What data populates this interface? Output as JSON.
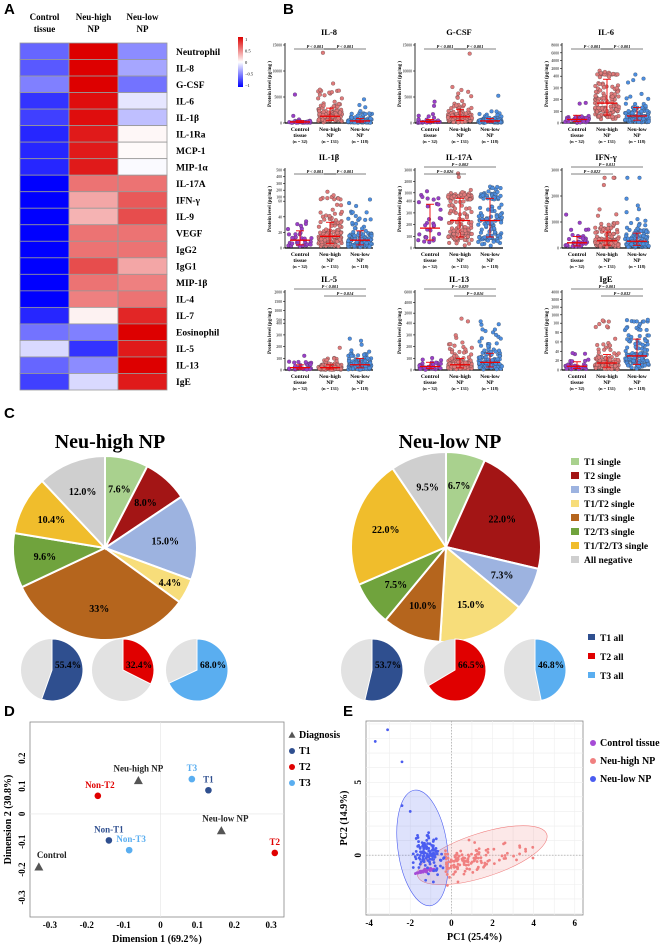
{
  "panel_letters": [
    "A",
    "B",
    "C",
    "D",
    "E"
  ],
  "chart_data": [
    {
      "panel": "A",
      "type": "heatmap",
      "columns": [
        "Control tissue",
        "Neu-high NP",
        "Neu-low NP"
      ],
      "column_lines": [
        [
          "Control",
          "tissue"
        ],
        [
          "Neu-high",
          "NP"
        ],
        [
          "Neu-low",
          "NP"
        ]
      ],
      "rows": [
        "Neutrophil",
        "IL-8",
        "G-CSF",
        "IL-6",
        "IL-1β",
        "IL-1Ra",
        "MCP-1",
        "MIP-1α",
        "IL-17A",
        "IFN-γ",
        "IL-9",
        "VEGF",
        "IgG2",
        "IgG1",
        "MIP-1β",
        "IL-4",
        "IL-7",
        "Eosinophil",
        "IL-5",
        "IL-13",
        "IgE"
      ],
      "values": [
        [
          -0.6,
          1,
          -0.45
        ],
        [
          -0.65,
          1,
          -0.35
        ],
        [
          -0.5,
          1,
          -0.55
        ],
        [
          -0.8,
          0.95,
          -0.1
        ],
        [
          -0.75,
          0.95,
          -0.25
        ],
        [
          -0.85,
          0.9,
          0.03
        ],
        [
          -0.85,
          0.9,
          0.02
        ],
        [
          -0.85,
          0.9,
          -0.02
        ],
        [
          -1,
          0.55,
          0.55
        ],
        [
          -1,
          0.35,
          0.65
        ],
        [
          -1,
          0.3,
          0.7
        ],
        [
          -1,
          0.55,
          0.55
        ],
        [
          -1,
          0.55,
          0.55
        ],
        [
          -1,
          0.7,
          0.35
        ],
        [
          -1,
          0.55,
          0.5
        ],
        [
          -1,
          0.5,
          0.55
        ],
        [
          -0.85,
          0.05,
          0.85
        ],
        [
          -0.55,
          -0.5,
          1
        ],
        [
          -0.15,
          -0.8,
          0.9
        ],
        [
          -0.6,
          -0.45,
          1
        ],
        [
          -0.75,
          -0.15,
          0.9
        ]
      ],
      "colorbar": {
        "range": [
          -1,
          1
        ],
        "ticks": [
          "1",
          "0.5",
          "0",
          "−0.5",
          "−1"
        ],
        "low": "#0000ff",
        "mid": "#ffffff",
        "high": "#dd0000"
      }
    },
    {
      "panel": "B",
      "type": "scatter",
      "groups": [
        {
          "line1": "Control",
          "line2": "tissue",
          "n_label": "(n = 32)",
          "n": 32,
          "color": "#9a3fc8"
        },
        {
          "line1": "Neu-high",
          "line2": "NP",
          "n_label": "(n = 131)",
          "n": 131,
          "color": "#e07a7a"
        },
        {
          "line1": "Neu-low",
          "line2": "NP",
          "n_label": "(n = 118)",
          "n": 118,
          "color": "#4d8ee0"
        }
      ],
      "ylabel": "Protein level (pg/mg )",
      "plots": [
        {
          "title": "IL-8",
          "ticks": [
            0,
            5000,
            10000,
            15000
          ],
          "medians": [
            200,
            1300,
            400
          ],
          "sig": [
            {
              "a": 0,
              "b": 1,
              "label": "P < 0.001",
              "lvl": 0
            },
            {
              "a": 1,
              "b": 2,
              "label": "P < 0.001",
              "lvl": 0
            }
          ]
        },
        {
          "title": "G-CSF",
          "ticks": [
            0,
            5000,
            10000,
            15000
          ],
          "medians": [
            300,
            1200,
            400
          ],
          "sig": [
            {
              "a": 0,
              "b": 1,
              "label": "P < 0.001",
              "lvl": 0
            },
            {
              "a": 1,
              "b": 2,
              "label": "P < 0.001",
              "lvl": 0
            }
          ]
        },
        {
          "title": "IL-6",
          "ticks": [
            0,
            100,
            200,
            300,
            400
          ],
          "upper_ticks": [
            2000,
            4000,
            6000,
            8000
          ],
          "medians": [
            30,
            170,
            60
          ],
          "sig": [
            {
              "a": 0,
              "b": 1,
              "label": "P < 0.001",
              "lvl": 0
            },
            {
              "a": 1,
              "b": 2,
              "label": "P < 0.001",
              "lvl": 0
            }
          ]
        },
        {
          "title": "IL-1β",
          "ticks": [
            0,
            20,
            40,
            60
          ],
          "upper_ticks": [
            100,
            200,
            300,
            400,
            500
          ],
          "medians": [
            10,
            15,
            10
          ],
          "sig": [
            {
              "a": 0,
              "b": 1,
              "label": "P < 0.001",
              "lvl": 0
            },
            {
              "a": 1,
              "b": 2,
              "label": "P < 0.001",
              "lvl": 0
            }
          ]
        },
        {
          "title": "IL-17A",
          "ticks": [
            0,
            100,
            200,
            300,
            400
          ],
          "upper_ticks": [
            1000,
            2000,
            3000
          ],
          "medians": [
            170,
            235,
            235
          ],
          "sig": [
            {
              "a": 0,
              "b": 1,
              "label": "P = 0.026",
              "lvl": 0
            },
            {
              "a": 0,
              "b": 2,
              "label": "P = 0.002",
              "lvl": 1
            }
          ]
        },
        {
          "title": "IFN-γ",
          "ticks": [
            0,
            1000,
            2000,
            3000
          ],
          "medians": [
            200,
            280,
            260
          ],
          "sig": [
            {
              "a": 0,
              "b": 1,
              "label": "P = 0.022",
              "lvl": 0
            },
            {
              "a": 0,
              "b": 2,
              "label": "P = 0.011",
              "lvl": 1
            }
          ]
        },
        {
          "title": "IL-5",
          "ticks": [
            0,
            100,
            200,
            300,
            400
          ],
          "upper_ticks": [
            500,
            1000,
            1500,
            2000
          ],
          "medians": [
            20,
            20,
            45
          ],
          "sig": [
            {
              "a": 1,
              "b": 2,
              "label": "P = 0.014",
              "lvl": 0
            },
            {
              "a": 0,
              "b": 2,
              "label": "P < 0.001",
              "lvl": 1
            }
          ]
        },
        {
          "title": "IL-13",
          "ticks": [
            0,
            100,
            200,
            300,
            400
          ],
          "upper_ticks": [
            2000,
            4000,
            6000
          ],
          "medians": [
            30,
            45,
            65
          ],
          "sig": [
            {
              "a": 1,
              "b": 2,
              "label": "P = 0.016",
              "lvl": 0
            },
            {
              "a": 0,
              "b": 2,
              "label": "P = 0.029",
              "lvl": 1
            }
          ]
        },
        {
          "title": "IgE",
          "ticks": [
            0,
            20,
            40,
            60,
            80,
            100
          ],
          "upper_ticks": [
            1000,
            2000,
            3000,
            4000
          ],
          "medians": [
            8,
            15,
            30
          ],
          "sig": [
            {
              "a": 1,
              "b": 2,
              "label": "P = 0.032",
              "lvl": 0
            },
            {
              "a": 0,
              "b": 2,
              "label": "P = 0.001",
              "lvl": 1
            }
          ]
        }
      ]
    },
    {
      "panel": "C",
      "type": "pie",
      "categories": [
        "T1 single",
        "T2 single",
        "T3 single",
        "T1/T2 single",
        "T1/T3 single",
        "T2/T3 single",
        "T1/T2/T3 single",
        "All negative"
      ],
      "colors": [
        "#a9d18e",
        "#a31515",
        "#9db3e0",
        "#f7dd7a",
        "#b5651d",
        "#70a33d",
        "#f0bd2c",
        "#cfcfcf"
      ],
      "pies": [
        {
          "title": "Neu-high NP",
          "values": [
            7.6,
            8.0,
            15.0,
            4.4,
            33,
            9.6,
            10.4,
            12.0
          ],
          "labels": [
            "7.6%",
            "8.0%",
            "15.0%",
            "4.4%",
            "33%",
            "9.6%",
            "10.4%",
            "12.0%"
          ]
        },
        {
          "title": "Neu-low NP",
          "values": [
            6.7,
            22.0,
            7.3,
            15.0,
            10.0,
            7.5,
            22.0,
            9.5
          ],
          "labels": [
            "6.7%",
            "22.0%",
            "7.3%",
            "15.0%",
            "10.0%",
            "7.5%",
            "22.0%",
            "9.5%"
          ]
        }
      ],
      "all_categories": [
        "T1 all",
        "T2 all",
        "T3 all"
      ],
      "all_colors": [
        "#2f4f8f",
        "#e00000",
        "#5aaef0"
      ],
      "rest_color": "#e2e2e2",
      "small_pies": [
        {
          "group": "Neu-high NP",
          "values": [
            55.4,
            32.4,
            68.0
          ],
          "labels": [
            "55.4%",
            "32.4%",
            "68.0%"
          ]
        },
        {
          "group": "Neu-low NP",
          "values": [
            53.7,
            66.5,
            46.8
          ],
          "labels": [
            "53.7%",
            "66.5%",
            "46.8%"
          ]
        }
      ]
    },
    {
      "panel": "D",
      "type": "scatter",
      "xlabel": "Dimension 1 (69.2%)",
      "ylabel": "Dimension 2 (30.8%)",
      "xlim": [
        -0.354,
        0.335
      ],
      "ylim": [
        -0.37,
        0.33
      ],
      "xticks": [
        -0.3,
        -0.2,
        -0.1,
        0,
        0.1,
        0.2,
        0.3
      ],
      "xtick_labels": [
        "-0.3",
        "-0.2",
        "-0.1",
        "0",
        "0.1",
        "0.2",
        "0.3"
      ],
      "yticks": [
        -0.3,
        -0.2,
        -0.1,
        0,
        0.1,
        0.2
      ],
      "ytick_labels": [
        "-0.3",
        "-0.2",
        "-0.1",
        "0",
        "0.1",
        "0.2"
      ],
      "legend": [
        {
          "label": "Diagnosis",
          "shape": "triangle",
          "color": "#555555"
        },
        {
          "label": "T1",
          "shape": "circle",
          "color": "#2f4f8f"
        },
        {
          "label": "T2",
          "shape": "circle",
          "color": "#e00000"
        },
        {
          "label": "T3",
          "shape": "circle",
          "color": "#5aaef0"
        }
      ],
      "points": [
        {
          "label": "Control",
          "x": -0.33,
          "y": -0.19,
          "shape": "triangle",
          "color": "#555555",
          "label_color": "#222222",
          "anchor": "start",
          "dx": -2,
          "dy": -9
        },
        {
          "label": "Neu-high NP",
          "x": -0.06,
          "y": 0.12,
          "shape": "triangle",
          "color": "#555555",
          "label_color": "#222222",
          "anchor": "middle",
          "dx": 0,
          "dy": -9
        },
        {
          "label": "Neu-low NP",
          "x": 0.165,
          "y": -0.06,
          "shape": "triangle",
          "color": "#555555",
          "label_color": "#222222",
          "anchor": "middle",
          "dx": 4,
          "dy": -9
        },
        {
          "label": "Non-T2",
          "x": -0.17,
          "y": 0.065,
          "shape": "circle",
          "color": "#e00000",
          "label_color": "#e00000",
          "anchor": "middle",
          "dx": 2,
          "dy": -8
        },
        {
          "label": "T3",
          "x": 0.085,
          "y": 0.125,
          "shape": "circle",
          "color": "#5aaef0",
          "label_color": "#5aaef0",
          "anchor": "middle",
          "dx": 0,
          "dy": -8
        },
        {
          "label": "T1",
          "x": 0.13,
          "y": 0.085,
          "shape": "circle",
          "color": "#2f4f8f",
          "label_color": "#2f4f8f",
          "anchor": "middle",
          "dx": 0,
          "dy": -8
        },
        {
          "label": "Non-T1",
          "x": -0.14,
          "y": -0.095,
          "shape": "circle",
          "color": "#2f4f8f",
          "label_color": "#2f4f8f",
          "anchor": "middle",
          "dx": 0,
          "dy": -8
        },
        {
          "label": "Non-T3",
          "x": -0.085,
          "y": -0.13,
          "shape": "circle",
          "color": "#5aaef0",
          "label_color": "#5aaef0",
          "anchor": "middle",
          "dx": 2,
          "dy": -8
        },
        {
          "label": "T2",
          "x": 0.31,
          "y": -0.14,
          "shape": "circle",
          "color": "#e00000",
          "label_color": "#e00000",
          "anchor": "middle",
          "dx": 0,
          "dy": -8
        }
      ]
    },
    {
      "panel": "E",
      "type": "scatter",
      "xlabel": "PC1 (25.4%)",
      "ylabel": "PC2 (14.9%)",
      "xlim": [
        -4.15,
        6.4
      ],
      "ylim": [
        -4.1,
        9.2
      ],
      "xticks": [
        -4,
        -2,
        0,
        2,
        4,
        6
      ],
      "xtick_labels": [
        "-4",
        "-2",
        "0",
        "2",
        "4",
        "6"
      ],
      "yticks": [
        0,
        5
      ],
      "ytick_labels": [
        "0",
        "5"
      ],
      "series": [
        {
          "name": "Control tissue",
          "color": "#a64bd6",
          "n": 32,
          "center": [
            -1.3,
            -1.1
          ],
          "spread": [
            0.3,
            0.12
          ]
        },
        {
          "name": "Neu-high NP",
          "color": "#f08080",
          "n": 131,
          "center": [
            1.3,
            0.0
          ],
          "spread": [
            1.1,
            0.45
          ],
          "ellipse": {
            "center": [
              1.5,
              0.0
            ],
            "axes": [
              3.3,
              1.5
            ],
            "angle_deg": 18
          }
        },
        {
          "name": "Neu-low NP",
          "color": "#4a5cf0",
          "n": 118,
          "center": [
            -1.15,
            0.1
          ],
          "spread": [
            0.35,
            0.7
          ],
          "ellipse": {
            "center": [
              -1.4,
              0.5
            ],
            "axes": [
              1.2,
              4.0
            ],
            "angle_deg": -8
          },
          "outliers": [
            [
              -3.7,
              7.8
            ],
            [
              -3.1,
              8.6
            ],
            [
              -2.4,
              6.4
            ],
            [
              -2.4,
              3.4
            ],
            [
              -2.0,
              3.0
            ]
          ]
        }
      ]
    }
  ]
}
